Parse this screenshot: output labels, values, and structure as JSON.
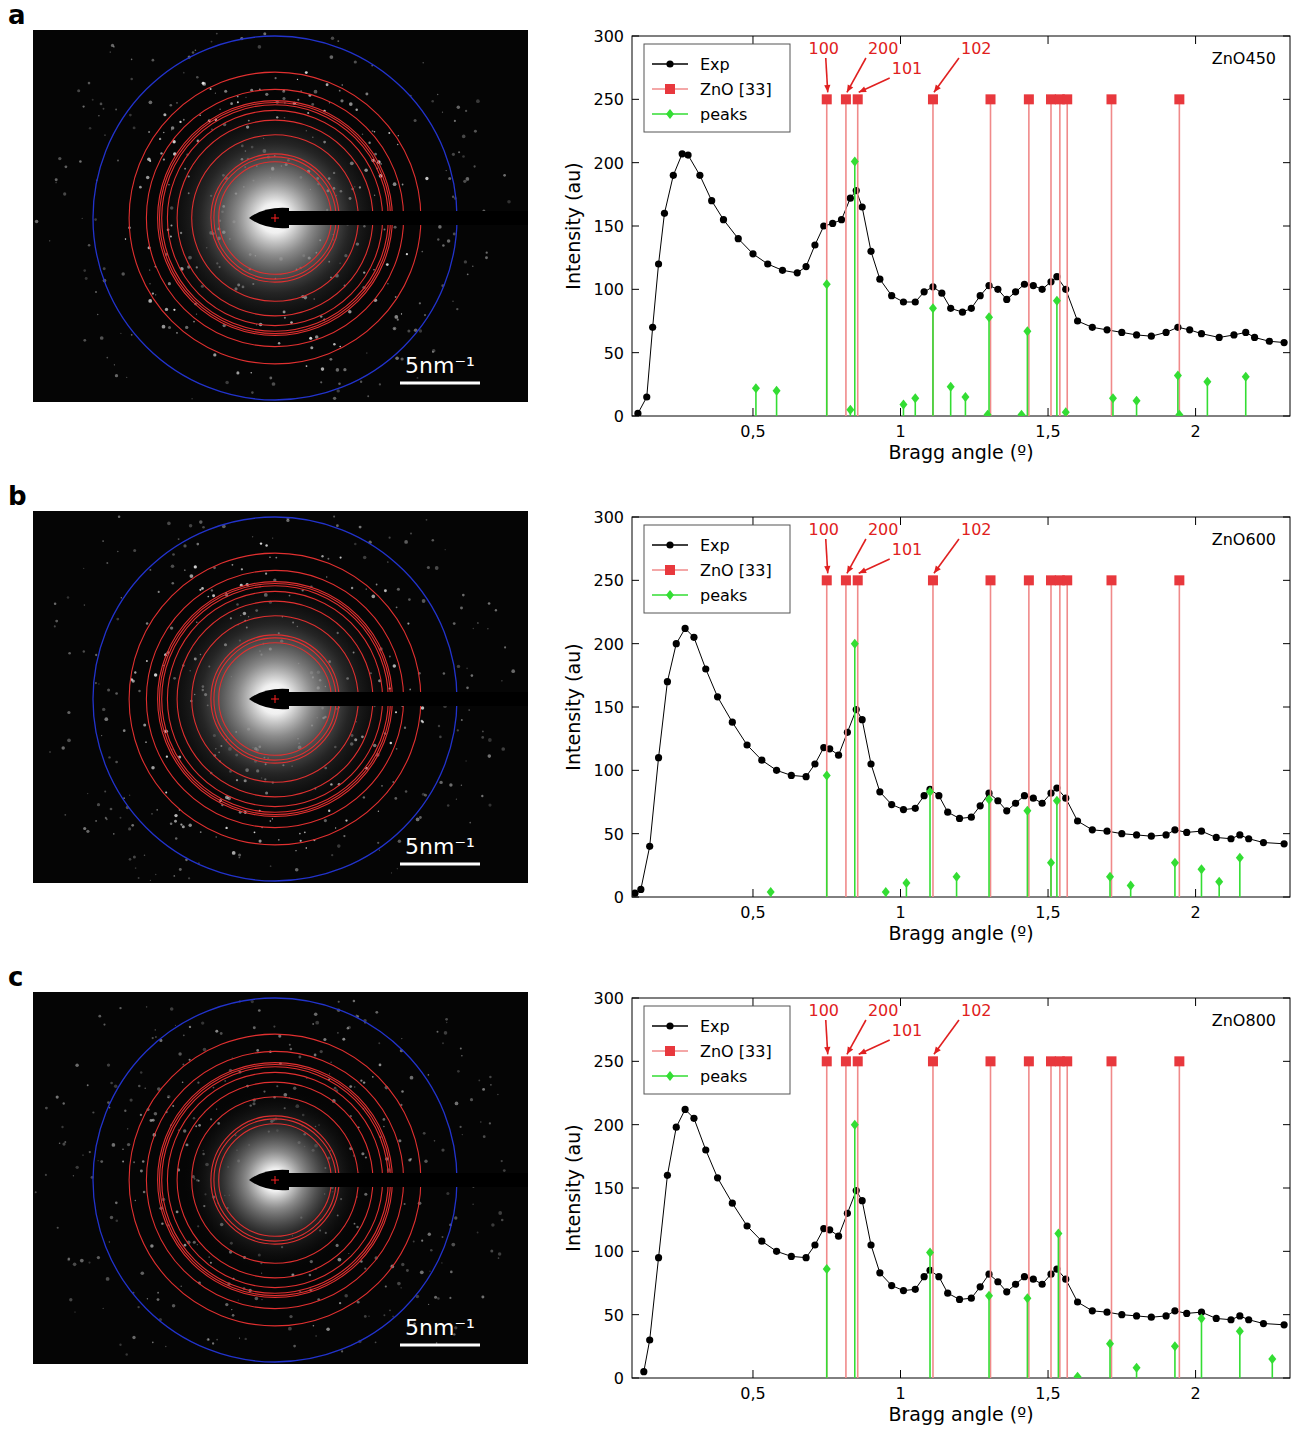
{
  "chart_data": [
    {
      "type": "line",
      "panel_label": "a",
      "image_scale_bar": "5nm⁻¹",
      "title": "ZnO450",
      "x_label": "Bragg angle (º)",
      "y_label": "Intensity (au)",
      "xlim": [
        0.09,
        2.32
      ],
      "ylim": [
        0,
        300
      ],
      "xticks": [
        {
          "value": 0.5,
          "label": "0,5"
        },
        {
          "value": 1,
          "label": "1"
        },
        {
          "value": 1.5,
          "label": "1,5"
        },
        {
          "value": 2,
          "label": "2"
        }
      ],
      "yticks": [
        0,
        50,
        100,
        150,
        200,
        250,
        300
      ],
      "grid": false,
      "legend": "upper left",
      "series": [
        {
          "name": "Exp",
          "type": "line",
          "marker": "circle",
          "color": "#000000",
          "x": [
            0.11,
            0.14,
            0.16,
            0.18,
            0.2,
            0.23,
            0.26,
            0.28,
            0.32,
            0.36,
            0.4,
            0.45,
            0.5,
            0.55,
            0.6,
            0.65,
            0.68,
            0.71,
            0.74,
            0.77,
            0.8,
            0.83,
            0.85,
            0.87,
            0.9,
            0.93,
            0.97,
            1.01,
            1.05,
            1.08,
            1.11,
            1.14,
            1.17,
            1.21,
            1.24,
            1.27,
            1.3,
            1.33,
            1.36,
            1.39,
            1.42,
            1.45,
            1.48,
            1.51,
            1.53,
            1.56,
            1.6,
            1.65,
            1.7,
            1.75,
            1.8,
            1.85,
            1.9,
            1.94,
            1.98,
            2.02,
            2.08,
            2.13,
            2.17,
            2.2,
            2.25,
            2.3
          ],
          "values": [
            2,
            15,
            70,
            120,
            160,
            190,
            207,
            206,
            190,
            170,
            155,
            140,
            128,
            120,
            115,
            113,
            118,
            135,
            150,
            152,
            155,
            172,
            178,
            165,
            130,
            108,
            95,
            90,
            90,
            98,
            102,
            97,
            85,
            82,
            85,
            95,
            103,
            100,
            92,
            98,
            104,
            103,
            100,
            106,
            110,
            100,
            75,
            70,
            68,
            66,
            64,
            63,
            66,
            70,
            68,
            65,
            62,
            64,
            66,
            62,
            59,
            58
          ]
        },
        {
          "name": "ZnO [33]",
          "type": "stem",
          "marker": "square",
          "color": "#e8383d",
          "x": [
            0.75,
            0.815,
            0.855,
            1.11,
            1.305,
            1.435,
            1.51,
            1.54,
            1.565,
            1.715,
            1.945
          ],
          "values": [
            250,
            250,
            250,
            250,
            250,
            250,
            250,
            250,
            250,
            250,
            250
          ],
          "point_labels": [
            "100",
            "200",
            "101",
            "102",
            null,
            null,
            null,
            null,
            null,
            null,
            null
          ]
        },
        {
          "name": "peaks",
          "type": "stem",
          "marker": "diamond",
          "color": "#33dd33",
          "x": [
            0.51,
            0.58,
            0.75,
            0.83,
            0.845,
            1.01,
            1.05,
            1.11,
            1.17,
            1.22,
            1.295,
            1.3,
            1.41,
            1.43,
            1.53,
            1.56,
            1.72,
            1.8,
            1.94,
            1.945,
            2.04,
            2.17
          ],
          "values": [
            22,
            20,
            104,
            5,
            201,
            9,
            14,
            85,
            23,
            15,
            1,
            78,
            1,
            67,
            91,
            3,
            14,
            12,
            32,
            1,
            27,
            31
          ]
        }
      ]
    },
    {
      "type": "line",
      "panel_label": "b",
      "image_scale_bar": "5nm⁻¹",
      "title": "ZnO600",
      "x_label": "Bragg angle (º)",
      "y_label": "Intensity (au)",
      "xlim": [
        0.09,
        2.32
      ],
      "ylim": [
        0,
        300
      ],
      "xticks": [
        {
          "value": 0.5,
          "label": "0,5"
        },
        {
          "value": 1,
          "label": "1"
        },
        {
          "value": 1.5,
          "label": "1,5"
        },
        {
          "value": 2,
          "label": "2"
        }
      ],
      "yticks": [
        0,
        50,
        100,
        150,
        200,
        250,
        300
      ],
      "grid": false,
      "legend": "upper left",
      "series": [
        {
          "name": "Exp",
          "type": "line",
          "marker": "circle",
          "color": "#000000",
          "x": [
            0.1,
            0.12,
            0.15,
            0.18,
            0.21,
            0.24,
            0.27,
            0.3,
            0.34,
            0.38,
            0.43,
            0.48,
            0.53,
            0.58,
            0.63,
            0.68,
            0.71,
            0.74,
            0.76,
            0.79,
            0.82,
            0.85,
            0.87,
            0.9,
            0.93,
            0.97,
            1.01,
            1.05,
            1.08,
            1.1,
            1.13,
            1.16,
            1.2,
            1.24,
            1.27,
            1.3,
            1.33,
            1.36,
            1.39,
            1.42,
            1.45,
            1.48,
            1.51,
            1.53,
            1.56,
            1.6,
            1.65,
            1.7,
            1.75,
            1.8,
            1.85,
            1.9,
            1.93,
            1.97,
            2.02,
            2.07,
            2.12,
            2.15,
            2.18,
            2.23,
            2.3
          ],
          "values": [
            3,
            6,
            40,
            110,
            170,
            200,
            212,
            205,
            180,
            158,
            138,
            120,
            108,
            100,
            96,
            95,
            105,
            118,
            117,
            112,
            130,
            148,
            140,
            105,
            83,
            73,
            69,
            70,
            80,
            85,
            80,
            67,
            62,
            63,
            72,
            82,
            76,
            68,
            74,
            80,
            78,
            74,
            82,
            86,
            78,
            60,
            53,
            52,
            50,
            49,
            48,
            49,
            53,
            51,
            52,
            47,
            46,
            49,
            46,
            43,
            42
          ]
        },
        {
          "name": "ZnO [33]",
          "type": "stem",
          "marker": "square",
          "color": "#e8383d",
          "x": [
            0.75,
            0.815,
            0.855,
            1.11,
            1.305,
            1.435,
            1.51,
            1.54,
            1.565,
            1.715,
            1.945
          ],
          "values": [
            250,
            250,
            250,
            250,
            250,
            250,
            250,
            250,
            250,
            250,
            250
          ],
          "point_labels": [
            "100",
            "200",
            "101",
            "102",
            null,
            null,
            null,
            null,
            null,
            null,
            null
          ]
        },
        {
          "name": "peaks",
          "type": "stem",
          "marker": "diamond",
          "color": "#33dd33",
          "x": [
            0.56,
            0.75,
            0.845,
            0.95,
            1.02,
            1.1,
            1.19,
            1.3,
            1.43,
            1.51,
            1.53,
            1.71,
            1.78,
            1.93,
            2.02,
            2.08,
            2.15
          ],
          "values": [
            4,
            96,
            200,
            4,
            11,
            83,
            16,
            77,
            68,
            27,
            76,
            16,
            9,
            27,
            22,
            12,
            31
          ]
        }
      ]
    },
    {
      "type": "line",
      "panel_label": "c",
      "image_scale_bar": "5nm⁻¹",
      "title": "ZnO800",
      "x_label": "Bragg angle (º)",
      "y_label": "Intensity (au)",
      "xlim": [
        0.09,
        2.32
      ],
      "ylim": [
        0,
        300
      ],
      "xticks": [
        {
          "value": 0.5,
          "label": "0,5"
        },
        {
          "value": 1,
          "label": "1"
        },
        {
          "value": 1.5,
          "label": "1,5"
        },
        {
          "value": 2,
          "label": "2"
        }
      ],
      "yticks": [
        0,
        50,
        100,
        150,
        200,
        250,
        300
      ],
      "grid": false,
      "legend": "upper left",
      "series": [
        {
          "name": "Exp",
          "type": "line",
          "marker": "circle",
          "color": "#000000",
          "x": [
            0.13,
            0.15,
            0.18,
            0.21,
            0.24,
            0.27,
            0.3,
            0.34,
            0.38,
            0.43,
            0.48,
            0.53,
            0.58,
            0.63,
            0.68,
            0.71,
            0.74,
            0.76,
            0.79,
            0.82,
            0.85,
            0.87,
            0.9,
            0.93,
            0.97,
            1.01,
            1.05,
            1.08,
            1.1,
            1.13,
            1.16,
            1.2,
            1.24,
            1.27,
            1.3,
            1.33,
            1.36,
            1.39,
            1.42,
            1.45,
            1.48,
            1.51,
            1.53,
            1.56,
            1.6,
            1.65,
            1.7,
            1.75,
            1.8,
            1.85,
            1.9,
            1.93,
            1.97,
            2.02,
            2.07,
            2.12,
            2.15,
            2.18,
            2.23,
            2.3
          ],
          "values": [
            5,
            30,
            95,
            160,
            198,
            212,
            205,
            180,
            158,
            138,
            120,
            108,
            100,
            96,
            95,
            105,
            118,
            117,
            112,
            130,
            148,
            140,
            105,
            83,
            73,
            69,
            70,
            80,
            85,
            80,
            67,
            62,
            63,
            72,
            82,
            76,
            68,
            74,
            80,
            78,
            74,
            82,
            86,
            78,
            60,
            53,
            52,
            50,
            49,
            48,
            49,
            53,
            51,
            52,
            47,
            46,
            49,
            46,
            43,
            42
          ]
        },
        {
          "name": "ZnO [33]",
          "type": "stem",
          "marker": "square",
          "color": "#e8383d",
          "x": [
            0.75,
            0.815,
            0.855,
            1.11,
            1.305,
            1.435,
            1.51,
            1.54,
            1.565,
            1.715,
            1.945
          ],
          "values": [
            250,
            250,
            250,
            250,
            250,
            250,
            250,
            250,
            250,
            250,
            250
          ],
          "point_labels": [
            "100",
            "200",
            "101",
            "102",
            null,
            null,
            null,
            null,
            null,
            null,
            null
          ]
        },
        {
          "name": "peaks",
          "type": "stem",
          "marker": "diamond",
          "color": "#33dd33",
          "x": [
            0.75,
            0.845,
            1.1,
            1.3,
            1.43,
            1.535,
            1.6,
            1.71,
            1.8,
            1.93,
            2.02,
            2.15,
            2.26
          ],
          "values": [
            86,
            200,
            99,
            65,
            63,
            114,
            1,
            27,
            8,
            25,
            47,
            37,
            15
          ]
        }
      ]
    }
  ]
}
